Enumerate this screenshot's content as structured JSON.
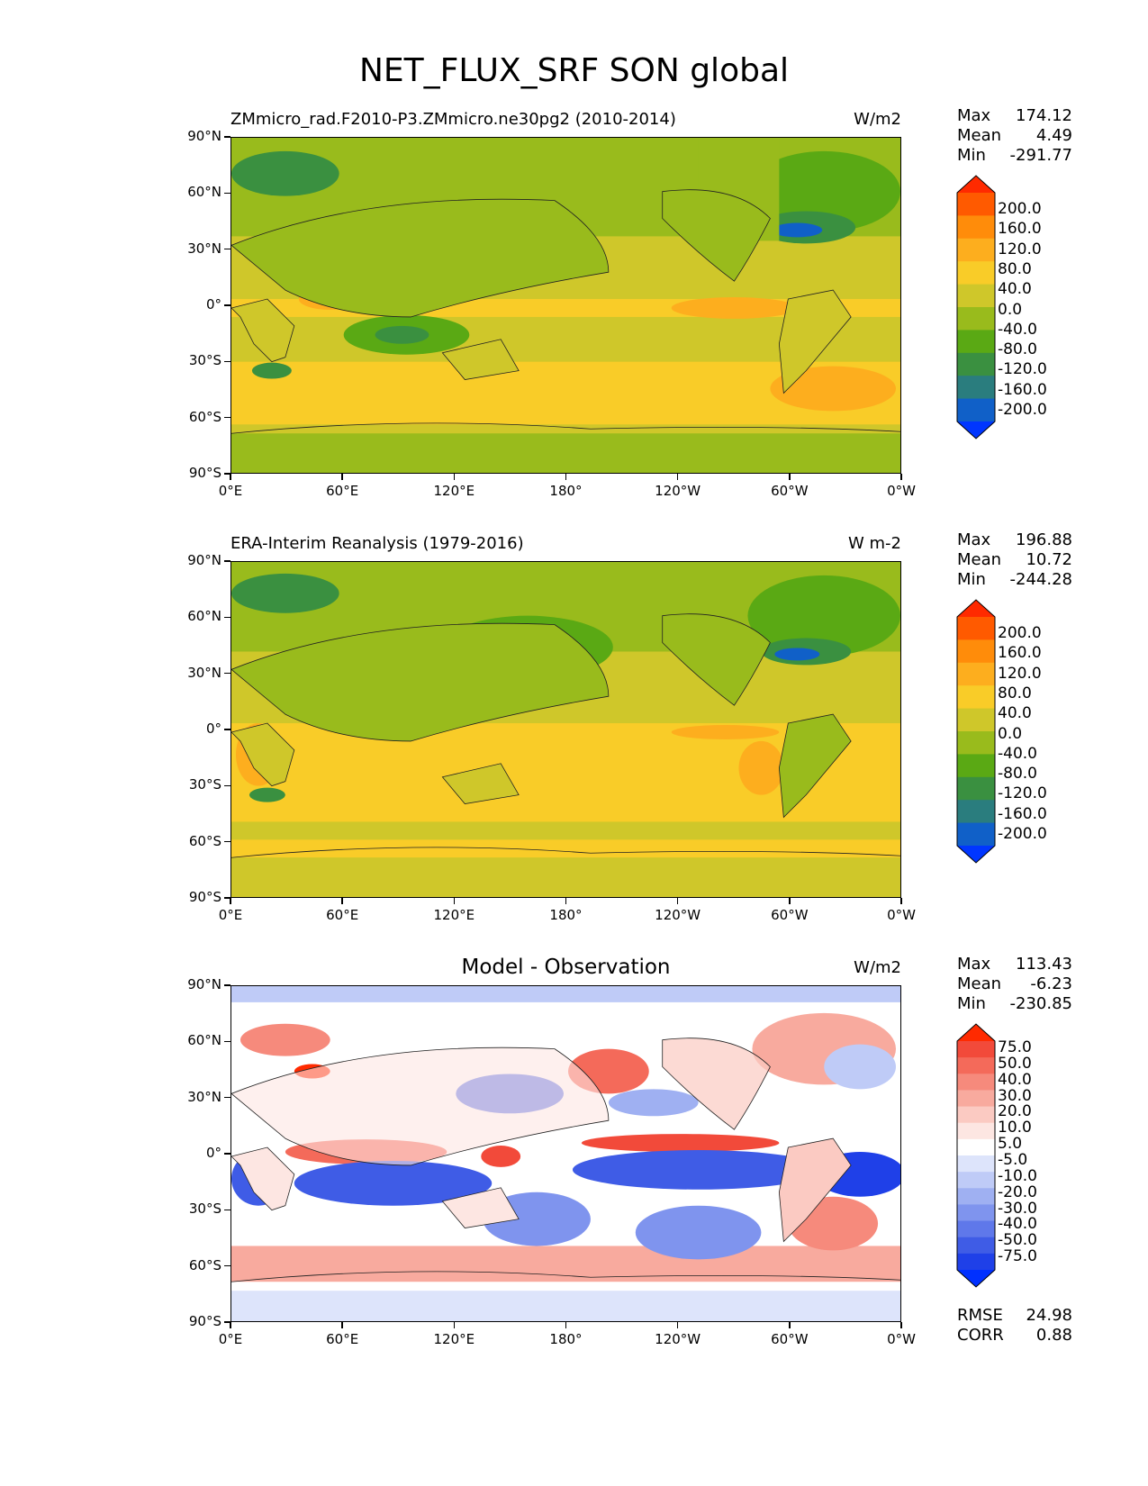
{
  "title": "NET_FLUX_SRF SON global",
  "lat_ticks": [
    "90°N",
    "60°N",
    "30°N",
    "0°",
    "30°S",
    "60°S",
    "90°S"
  ],
  "lon_ticks": [
    "0°E",
    "60°E",
    "120°E",
    "180°",
    "120°W",
    "60°W",
    "0°W"
  ],
  "panels": [
    {
      "title": "ZMmicro_rad.F2010-P3.ZMmicro.ne30pg2 (2010-2014)",
      "units": "W/m2",
      "stats": {
        "max_label": "Max",
        "max": "174.12",
        "mean_label": "Mean",
        "mean": "4.49",
        "min_label": "Min",
        "min": "-291.77"
      },
      "colorbar": {
        "labels": [
          "200.0",
          "160.0",
          "120.0",
          "80.0",
          "40.0",
          "0.0",
          "-40.0",
          "-80.0",
          "-120.0",
          "-160.0",
          "-200.0"
        ],
        "colors": [
          "#ff2a00",
          "#ff5a00",
          "#ff8c0a",
          "#fdae1e",
          "#f9cc28",
          "#cfc72a",
          "#99bb1c",
          "#5aa914",
          "#3a9040",
          "#2a7d7e",
          "#1060c8",
          "#0036ff"
        ]
      }
    },
    {
      "title": "ERA-Interim Reanalysis (1979-2016)",
      "units": "W m-2",
      "stats": {
        "max_label": "Max",
        "max": "196.88",
        "mean_label": "Mean",
        "mean": "10.72",
        "min_label": "Min",
        "min": "-244.28"
      },
      "colorbar": {
        "labels": [
          "200.0",
          "160.0",
          "120.0",
          "80.0",
          "40.0",
          "0.0",
          "-40.0",
          "-80.0",
          "-120.0",
          "-160.0",
          "-200.0"
        ],
        "colors": [
          "#ff2a00",
          "#ff5a00",
          "#ff8c0a",
          "#fdae1e",
          "#f9cc28",
          "#cfc72a",
          "#99bb1c",
          "#5aa914",
          "#3a9040",
          "#2a7d7e",
          "#1060c8",
          "#0036ff"
        ]
      }
    },
    {
      "title": "Model - Observation",
      "units": "W/m2",
      "stats": {
        "max_label": "Max",
        "max": "113.43",
        "mean_label": "Mean",
        "mean": "-6.23",
        "min_label": "Min",
        "min": "-230.85"
      },
      "colorbar": {
        "labels": [
          "75.0",
          "50.0",
          "40.0",
          "30.0",
          "20.0",
          "10.0",
          "5.0",
          "-5.0",
          "-10.0",
          "-20.0",
          "-30.0",
          "-40.0",
          "-50.0",
          "-75.0"
        ],
        "colors": [
          "#ff2a00",
          "#f24a3a",
          "#f46a5a",
          "#f68a7c",
          "#f8aa9e",
          "#fbcac2",
          "#fde6e2",
          "#ffffff",
          "#dde4fb",
          "#bfcbf7",
          "#9fb0f2",
          "#7f94ee",
          "#5f78ea",
          "#3f5ce6",
          "#1f40e8",
          "#0030ff"
        ]
      },
      "rmse_label": "RMSE",
      "rmse": "24.98",
      "corr_label": "CORR",
      "corr": "0.88"
    }
  ]
}
